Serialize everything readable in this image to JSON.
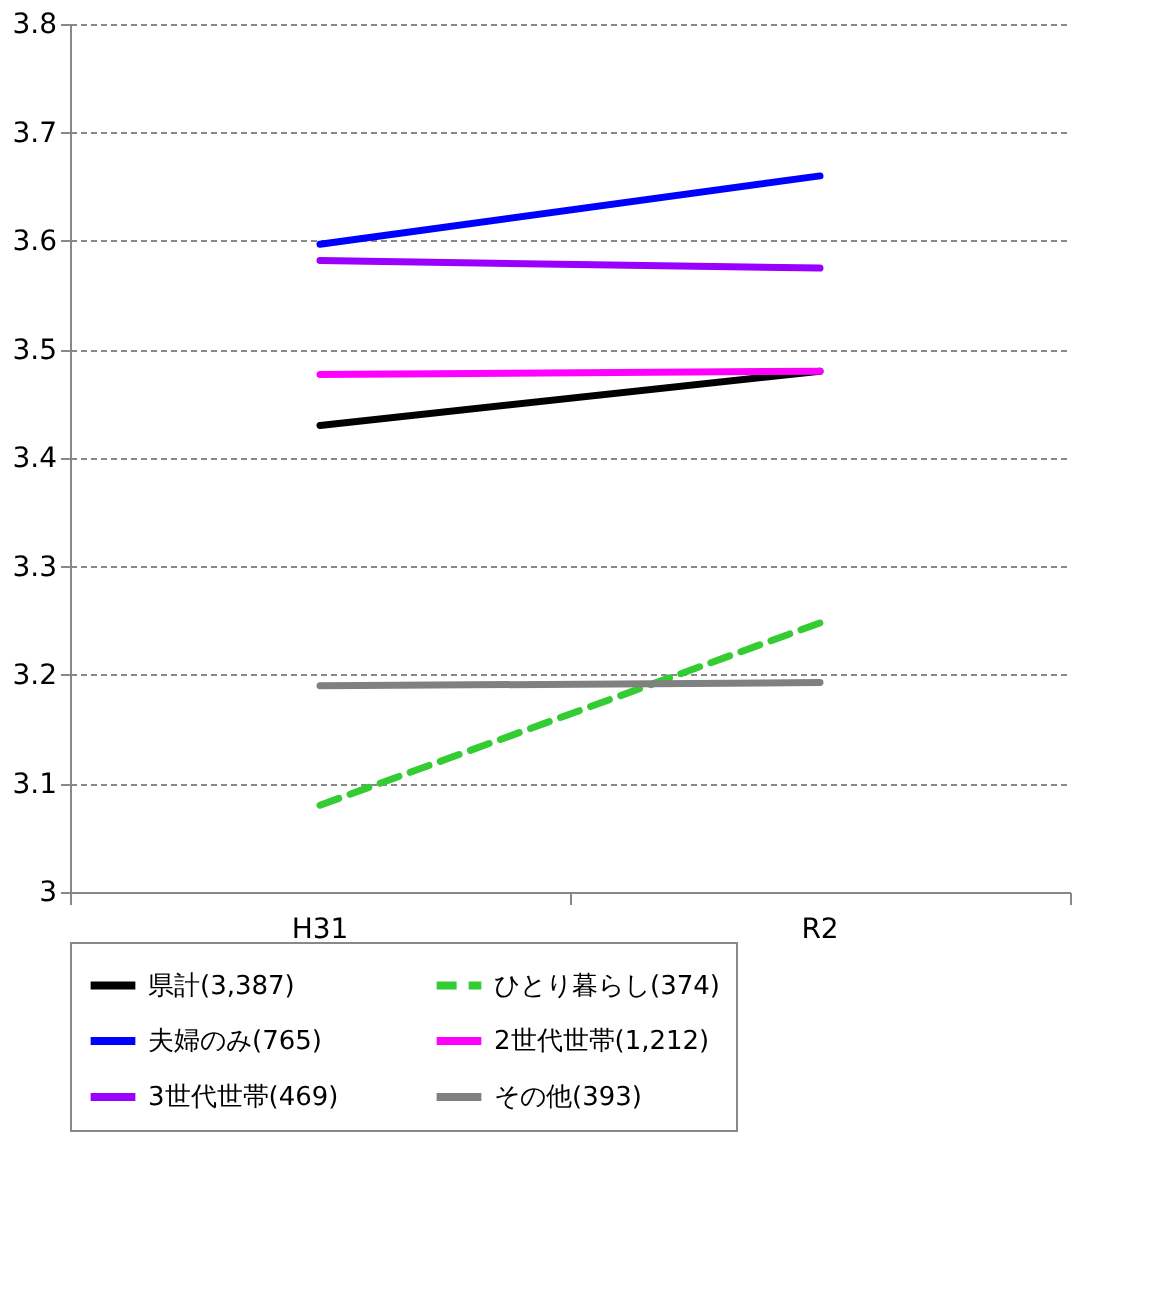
{
  "chart_data": {
    "type": "line",
    "categories": [
      "H31",
      "R2"
    ],
    "series": [
      {
        "name": "県計(3,387)",
        "color": "#000000",
        "values": [
          3.43,
          3.48
        ]
      },
      {
        "name": "ひとり暮らし(374)",
        "color": "#33cc33",
        "values": [
          3.08,
          3.248
        ],
        "line_style": "dashed"
      },
      {
        "name": "夫婦のみ(765)",
        "color": "#0000ff",
        "values": [
          3.597,
          3.66
        ]
      },
      {
        "name": "2世代世帯(1,212)",
        "color": "#ff00ff",
        "values": [
          3.477,
          3.48
        ]
      },
      {
        "name": "3世代世帯(469)",
        "color": "#9900ff",
        "values": [
          3.582,
          3.575
        ]
      },
      {
        "name": "その他(393)",
        "color": "#808080",
        "values": [
          3.19,
          3.193
        ]
      }
    ],
    "ylim": [
      3,
      3.8
    ],
    "yticks": [
      {
        "value": 3,
        "label": "3"
      },
      3.1,
      3.2,
      3.3,
      3.4,
      3.5,
      3.6,
      3.7,
      3.8
    ],
    "grid": "y",
    "legend": "bottom",
    "marker": "none",
    "line_style": "solid"
  }
}
